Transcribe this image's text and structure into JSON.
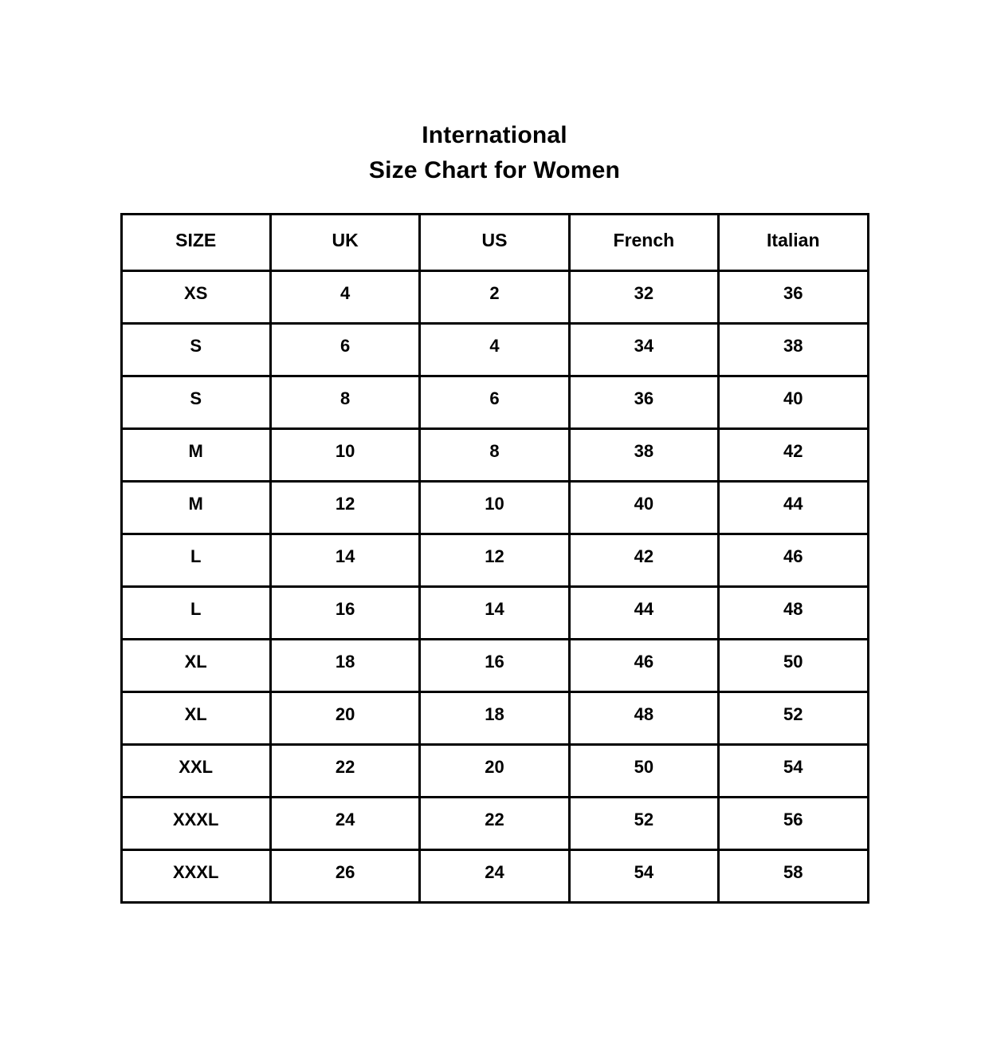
{
  "title": {
    "line1": "International",
    "line2": "Size Chart for Women"
  },
  "chart_data": {
    "type": "table",
    "title": "International Size Chart for Women",
    "columns": [
      "SIZE",
      "UK",
      "US",
      "French",
      "Italian"
    ],
    "rows": [
      [
        "XS",
        "4",
        "2",
        "32",
        "36"
      ],
      [
        "S",
        "6",
        "4",
        "34",
        "38"
      ],
      [
        "S",
        "8",
        "6",
        "36",
        "40"
      ],
      [
        "M",
        "10",
        "8",
        "38",
        "42"
      ],
      [
        "M",
        "12",
        "10",
        "40",
        "44"
      ],
      [
        "L",
        "14",
        "12",
        "42",
        "46"
      ],
      [
        "L",
        "16",
        "14",
        "44",
        "48"
      ],
      [
        "XL",
        "18",
        "16",
        "46",
        "50"
      ],
      [
        "XL",
        "20",
        "18",
        "48",
        "52"
      ],
      [
        "XXL",
        "22",
        "20",
        "50",
        "54"
      ],
      [
        "XXXL",
        "24",
        "22",
        "52",
        "56"
      ],
      [
        "XXXL",
        "26",
        "24",
        "54",
        "58"
      ]
    ]
  },
  "colors": {
    "background": "#ffffff",
    "text": "#000000",
    "border": "#000000"
  }
}
